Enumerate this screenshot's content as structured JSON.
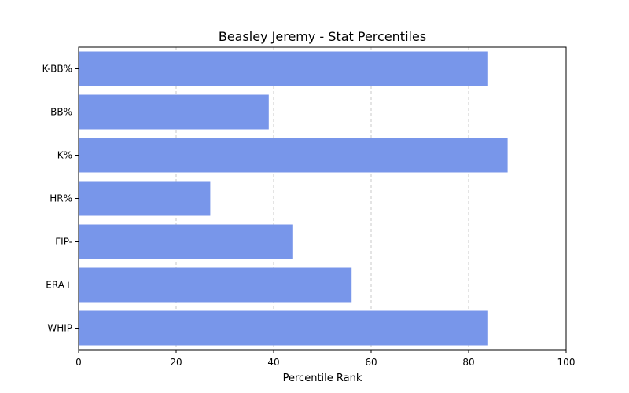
{
  "chart_data": {
    "type": "bar",
    "orientation": "horizontal",
    "title": "Beasley Jeremy - Stat Percentiles",
    "xlabel": "Percentile Rank",
    "ylabel": "",
    "categories": [
      "K-BB%",
      "BB%",
      "K%",
      "HR%",
      "FIP-",
      "ERA+",
      "WHIP"
    ],
    "values": [
      84,
      39,
      88,
      27,
      44,
      56,
      84
    ],
    "xlim": [
      0,
      100
    ],
    "xticks": [
      0,
      20,
      40,
      60,
      80,
      100
    ],
    "grid": "vertical-dashed",
    "legend": "none",
    "colors": {
      "bar": "#7896EA",
      "grid": "#c8c8c8",
      "axis": "#000000"
    }
  }
}
